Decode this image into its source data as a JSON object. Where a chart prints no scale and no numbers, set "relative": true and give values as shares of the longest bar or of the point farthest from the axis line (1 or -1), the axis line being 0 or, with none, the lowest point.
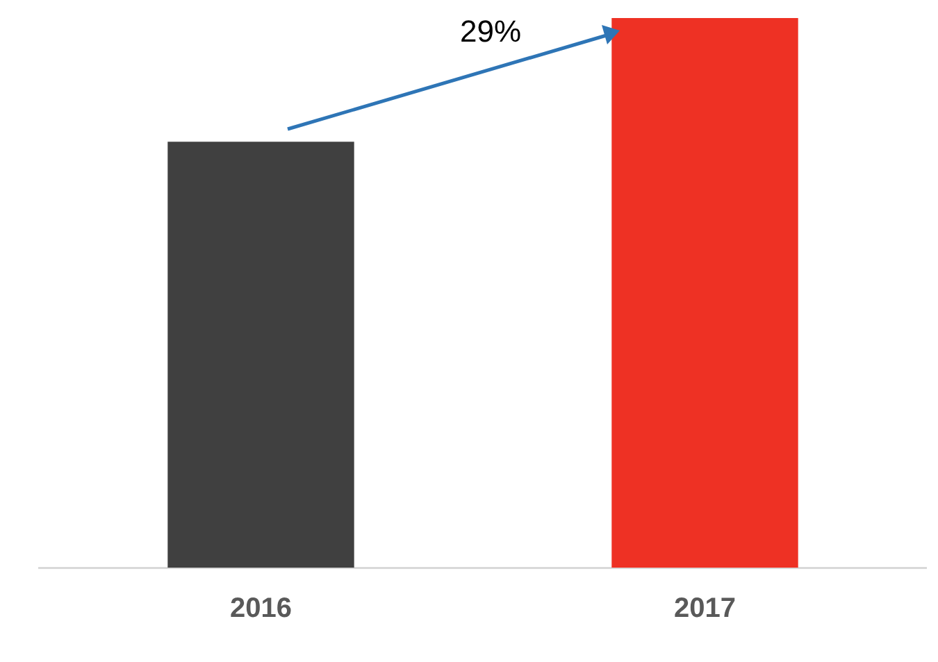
{
  "chart_data": {
    "type": "bar",
    "relative": true,
    "categories": [
      "2016",
      "2017"
    ],
    "values": [
      0.775,
      1
    ],
    "colors": [
      "#404040",
      "#ee3124"
    ],
    "annotations": [
      "29%"
    ],
    "grid": false,
    "legend": false
  }
}
